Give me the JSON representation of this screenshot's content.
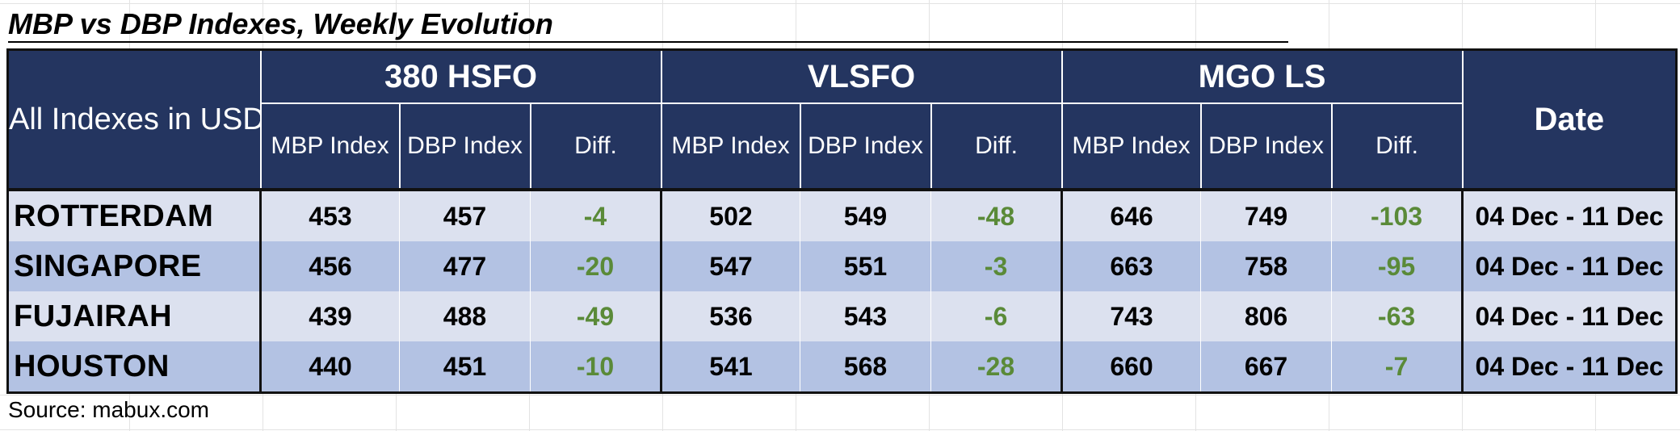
{
  "title": "MBP vs DBP Indexes, Weekly Evolution",
  "header": {
    "corner_label": "All Indexes in USD/MT",
    "groups": [
      "380 HSFO",
      "VLSFO",
      "MGO LS"
    ],
    "subcolumns": [
      "MBP Index",
      "DBP Index",
      "Diff."
    ],
    "date_label": "Date"
  },
  "rows": [
    {
      "port": "ROTTERDAM",
      "hsfo": [
        "453",
        "457",
        "-4"
      ],
      "vlsfo": [
        "502",
        "549",
        "-48"
      ],
      "mgo": [
        "646",
        "749",
        "-103"
      ],
      "date": "04 Dec - 11 Dec"
    },
    {
      "port": "SINGAPORE",
      "hsfo": [
        "456",
        "477",
        "-20"
      ],
      "vlsfo": [
        "547",
        "551",
        "-3"
      ],
      "mgo": [
        "663",
        "758",
        "-95"
      ],
      "date": "04 Dec - 11 Dec"
    },
    {
      "port": "FUJAIRAH",
      "hsfo": [
        "439",
        "488",
        "-49"
      ],
      "vlsfo": [
        "536",
        "543",
        "-6"
      ],
      "mgo": [
        "743",
        "806",
        "-63"
      ],
      "date": "04 Dec - 11 Dec"
    },
    {
      "port": "HOUSTON",
      "hsfo": [
        "440",
        "451",
        "-10"
      ],
      "vlsfo": [
        "541",
        "568",
        "-28"
      ],
      "mgo": [
        "660",
        "667",
        "-7"
      ],
      "date": "04 Dec - 11 Dec"
    }
  ],
  "source": "Source: mabux.com",
  "colors": {
    "header_bg": "#243560",
    "row_light": "#dce1ef",
    "row_dark": "#b3c2e3",
    "diff_text": "#5a8a38"
  }
}
